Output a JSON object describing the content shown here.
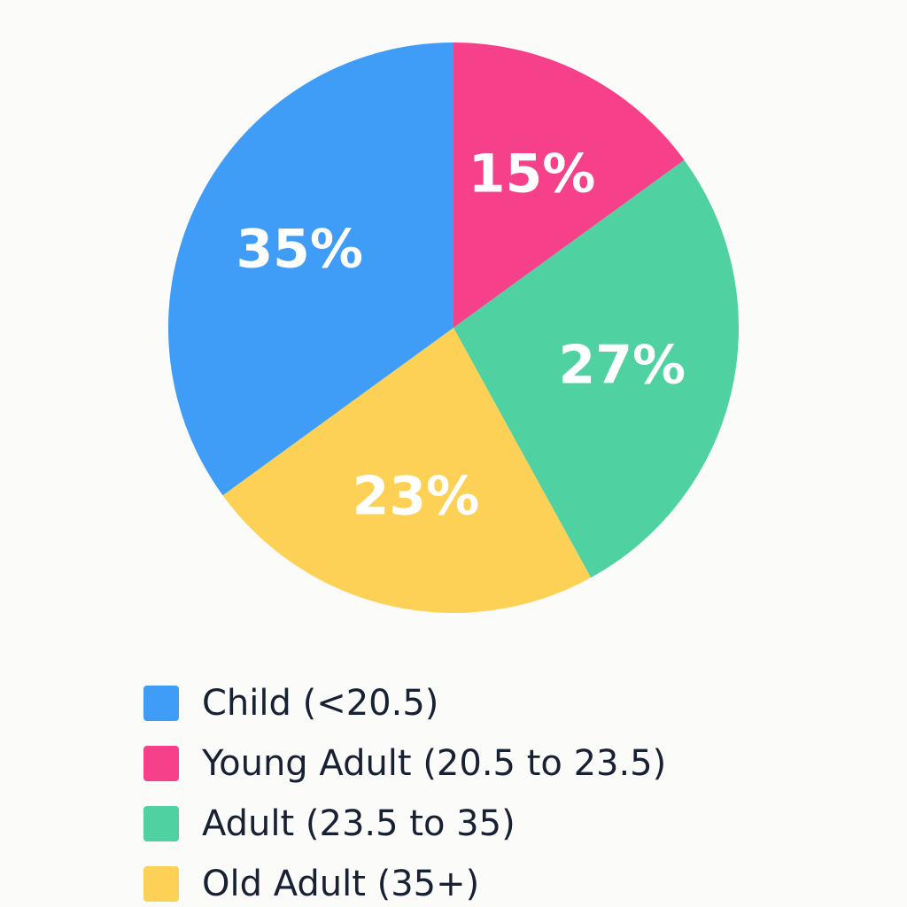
{
  "chart_data": {
    "type": "pie",
    "title": "",
    "start_angle_deg": 0,
    "direction": "clockwise",
    "legend_position": "bottom-left",
    "slices": [
      {
        "name": "Young Adult (20.5 to 23.5)",
        "value": 15,
        "label": "15%",
        "color": "#f7408a"
      },
      {
        "name": "Adult (23.5 to 35)",
        "value": 27,
        "label": "27%",
        "color": "#4fd1a2"
      },
      {
        "name": "Old Adult (35+)",
        "value": 23,
        "label": "23%",
        "color": "#fdd155"
      },
      {
        "name": "Child (<20.5)",
        "value": 35,
        "label": "35%",
        "color": "#3f9df8"
      }
    ],
    "legend": [
      {
        "label": "Child (<20.5)",
        "color": "#3f9df8"
      },
      {
        "label": "Young Adult (20.5 to 23.5)",
        "color": "#f7408a"
      },
      {
        "label": "Adult (23.5 to 35)",
        "color": "#4fd1a2"
      },
      {
        "label": "Old Adult (35+)",
        "color": "#fdd155"
      }
    ]
  }
}
